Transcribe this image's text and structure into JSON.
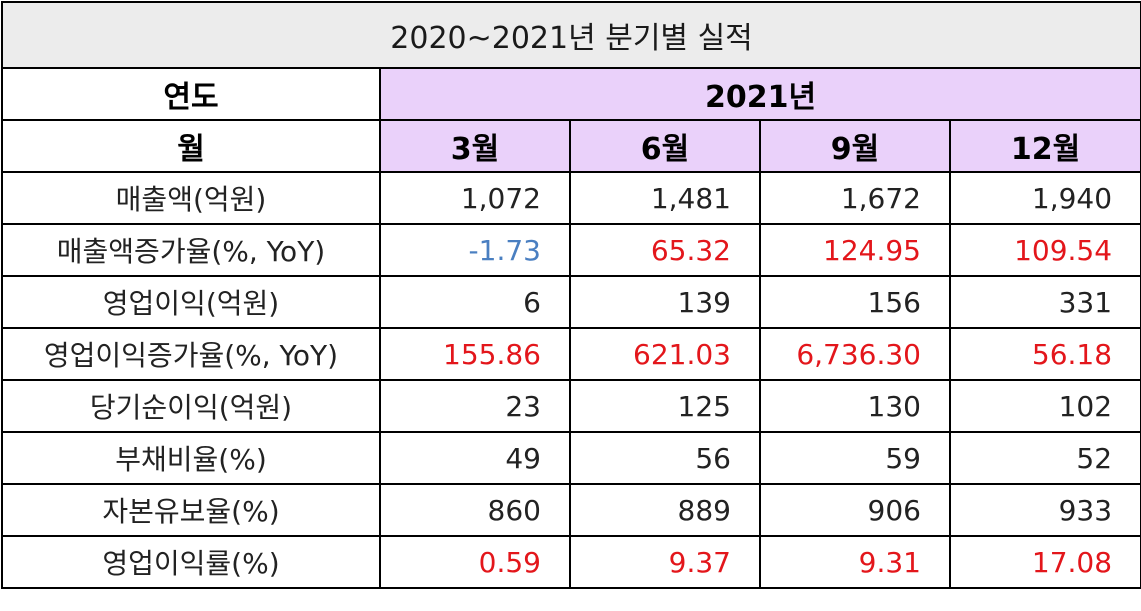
{
  "title": "2020~2021년 분기별 실적",
  "header": {
    "year_label": "연도",
    "year_value": "2021년",
    "month_label": "월",
    "months": [
      "3월",
      "6월",
      "9월",
      "12월"
    ]
  },
  "rows": [
    {
      "label": "매출액(억원)",
      "values": [
        "1,072",
        "1,481",
        "1,672",
        "1,940"
      ],
      "colors": [
        "normal",
        "normal",
        "normal",
        "normal"
      ]
    },
    {
      "label": "매출액증가율(%, YoY)",
      "values": [
        "-1.73",
        "65.32",
        "124.95",
        "109.54"
      ],
      "colors": [
        "negative",
        "red",
        "red",
        "red"
      ]
    },
    {
      "label": "영업이익(억원)",
      "values": [
        "6",
        "139",
        "156",
        "331"
      ],
      "colors": [
        "normal",
        "normal",
        "normal",
        "normal"
      ]
    },
    {
      "label": "영업이익증가율(%, YoY)",
      "values": [
        "155.86",
        "621.03",
        "6,736.30",
        "56.18"
      ],
      "colors": [
        "red",
        "red",
        "red",
        "red"
      ]
    },
    {
      "label": "당기순이익(억원)",
      "values": [
        "23",
        "125",
        "130",
        "102"
      ],
      "colors": [
        "normal",
        "normal",
        "normal",
        "normal"
      ]
    },
    {
      "label": "부채비율(%)",
      "values": [
        "49",
        "56",
        "59",
        "52"
      ],
      "colors": [
        "normal",
        "normal",
        "normal",
        "normal"
      ]
    },
    {
      "label": "자본유보율(%)",
      "values": [
        "860",
        "889",
        "906",
        "933"
      ],
      "colors": [
        "normal",
        "normal",
        "normal",
        "normal"
      ]
    },
    {
      "label": "영업이익률(%)",
      "values": [
        "0.59",
        "9.37",
        "9.31",
        "17.08"
      ],
      "colors": [
        "red",
        "red",
        "red",
        "red"
      ]
    }
  ],
  "colors": {
    "header_purple": "#ead1fa",
    "title_gray": "#ececec",
    "positive_red": "#e3161b",
    "negative_blue": "#4a7fc1"
  }
}
